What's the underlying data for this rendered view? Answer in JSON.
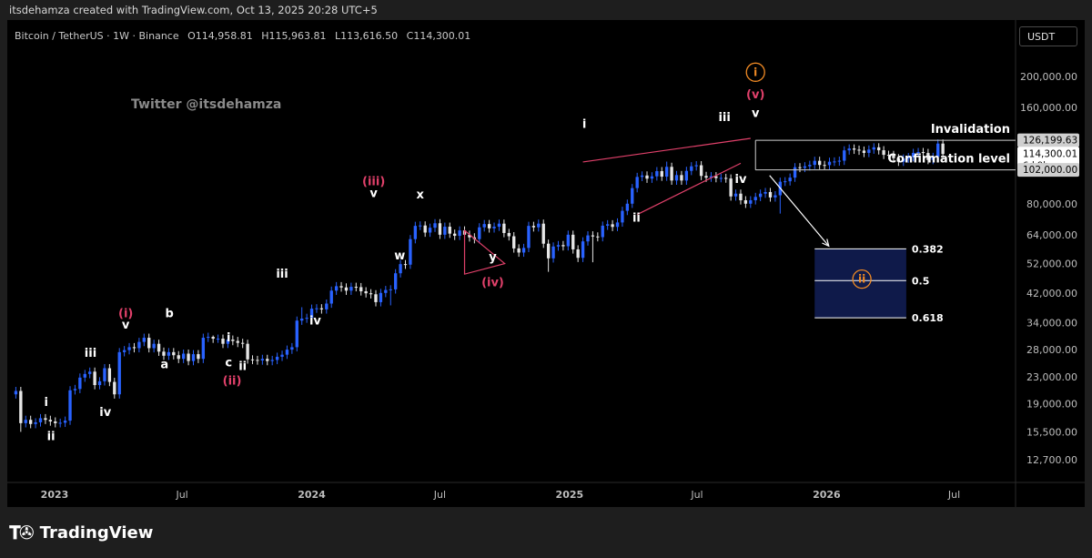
{
  "attribution": "itsdehamza created with TradingView.com, Oct 13, 2025 20:28 UTC+5",
  "symbol_line": {
    "name": "Bitcoin / TetherUS · 1W · Binance",
    "open": "O114,958.81",
    "high": "H115,963.81",
    "low": "L113,616.50",
    "close": "C114,300.01"
  },
  "watermark": "Twitter @itsdehamza",
  "currency": "USDT",
  "logo_text": "TradingView",
  "chart_data": {
    "type": "candlestick",
    "y_scale": "log",
    "ylim": [
      11500,
      240000
    ],
    "xlim": [
      "2022-10-31",
      "2026-09-21"
    ],
    "y_ticks": [
      {
        "v": 200000,
        "label": "200,000.00"
      },
      {
        "v": 160000,
        "label": "160,000.00"
      },
      {
        "v": 80000,
        "label": "80,000.00"
      },
      {
        "v": 64000,
        "label": "64,000.00"
      },
      {
        "v": 52000,
        "label": "52,000.00"
      },
      {
        "v": 42000,
        "label": "42,000.00"
      },
      {
        "v": 34000,
        "label": "34,000.00"
      },
      {
        "v": 28000,
        "label": "28,000.00"
      },
      {
        "v": 23000,
        "label": "23,000.00"
      },
      {
        "v": 19000,
        "label": "19,000.00"
      },
      {
        "v": 15500,
        "label": "15,500.00"
      },
      {
        "v": 12700,
        "label": "12,700.00"
      }
    ],
    "x_ticks": [
      {
        "date": "2023-01-01",
        "label": "2023",
        "bold": true
      },
      {
        "date": "2023-07-01",
        "label": "Jul",
        "bold": false
      },
      {
        "date": "2024-01-01",
        "label": "2024",
        "bold": true
      },
      {
        "date": "2024-07-01",
        "label": "Jul",
        "bold": false
      },
      {
        "date": "2025-01-01",
        "label": "2025",
        "bold": true
      },
      {
        "date": "2025-07-01",
        "label": "Jul",
        "bold": false
      },
      {
        "date": "2026-01-01",
        "label": "2026",
        "bold": true
      },
      {
        "date": "2026-07-01",
        "label": "Jul",
        "bold": false
      }
    ],
    "price_badges": [
      {
        "v": 126199.63,
        "label": "126,199.63",
        "bg": "#cfcfcf",
        "fg": "#000000"
      },
      {
        "v": 114300.01,
        "label": "114,300.01",
        "sub": "6d 9h",
        "bg": "#ffffff",
        "fg": "#000000"
      },
      {
        "v": 102000,
        "label": "102,000.00",
        "bg": "#cfcfcf",
        "fg": "#000000"
      }
    ],
    "candle_start": "2022-11-07",
    "candle_interval_days": 7,
    "closes": [
      20800,
      16500,
      16900,
      16400,
      16600,
      17100,
      16900,
      16700,
      16500,
      16550,
      16800,
      20900,
      21100,
      22900,
      23500,
      23900,
      21700,
      22300,
      24500,
      22200,
      20300,
      27500,
      27900,
      28500,
      28300,
      29600,
      30500,
      28300,
      29200,
      27600,
      26800,
      27500,
      26900,
      26200,
      27200,
      25800,
      27100,
      26200,
      30500,
      30700,
      30300,
      30300,
      29200,
      30100,
      29800,
      29400,
      29200,
      26100,
      26000,
      25900,
      26200,
      25800,
      26000,
      26600,
      27000,
      28000,
      28500,
      34500,
      35000,
      35200,
      37600,
      37700,
      37400,
      39000,
      42800,
      44200,
      43800,
      42800,
      44000,
      43900,
      42600,
      42000,
      41700,
      39400,
      42100,
      43000,
      43200,
      48500,
      51800,
      51600,
      62000,
      68200,
      68400,
      65000,
      67300,
      69500,
      64000,
      67800,
      64500,
      63500,
      66000,
      64000,
      62800,
      62000,
      67500,
      69100,
      67000,
      67800,
      69300,
      64800,
      63300,
      58000,
      56300,
      58200,
      68200,
      67500,
      69300,
      60000,
      54000,
      58800,
      59400,
      58900,
      64000,
      57600,
      54200,
      61000,
      63700,
      63200,
      62900,
      68300,
      69000,
      67700,
      69900,
      76000,
      80000,
      89500,
      97000,
      98000,
      95800,
      97400,
      101100,
      97200,
      104300,
      94500,
      98300,
      94500,
      101300,
      104700,
      105500,
      97700,
      96500,
      97500,
      96200,
      96300,
      95900,
      84300,
      86000,
      82000,
      80000,
      82000,
      84000,
      86000,
      87000,
      83700,
      85000,
      93700,
      94000,
      96500,
      104000,
      103500,
      104700,
      105800,
      108900,
      105700,
      105600,
      108200,
      108400,
      109000,
      117400,
      119000,
      118000,
      117200,
      115300,
      118100,
      120000,
      117500,
      113700,
      113600,
      111000,
      108200,
      110700,
      111800,
      115300,
      116000,
      115200,
      109600,
      112000,
      123300,
      114300
    ],
    "deviations": {
      "1": 15500,
      "40": 31000,
      "58": 38000,
      "76": 38500,
      "108": 49000,
      "117": 52500,
      "132": 108300,
      "155": 74500,
      "190": 126199.63,
      "191": 115963.81
    },
    "wave_labels": [
      {
        "text": "i",
        "date": "2022-12-20",
        "v": 18700,
        "color": "#ffffff"
      },
      {
        "text": "ii",
        "date": "2022-12-27",
        "v": 14600,
        "color": "#ffffff"
      },
      {
        "text": "iii",
        "date": "2023-02-21",
        "v": 26600,
        "color": "#ffffff"
      },
      {
        "text": "iv",
        "date": "2023-03-14",
        "v": 17400,
        "color": "#ffffff"
      },
      {
        "text": "(i)",
        "date": "2023-04-12",
        "v": 35400,
        "color": "#e0406a"
      },
      {
        "text": "v",
        "date": "2023-04-12",
        "v": 32600,
        "color": "#ffffff"
      },
      {
        "text": "a",
        "date": "2023-06-06",
        "v": 24500,
        "color": "#ffffff"
      },
      {
        "text": "b",
        "date": "2023-06-13",
        "v": 35400,
        "color": "#ffffff"
      },
      {
        "text": "i",
        "date": "2023-09-05",
        "v": 29700,
        "color": "#ffffff"
      },
      {
        "text": "c",
        "date": "2023-09-05",
        "v": 24800,
        "color": "#ffffff"
      },
      {
        "text": "(ii)",
        "date": "2023-09-10",
        "v": 21800,
        "color": "#e0406a"
      },
      {
        "text": "ii",
        "date": "2023-09-25",
        "v": 24200,
        "color": "#ffffff"
      },
      {
        "text": "iii",
        "date": "2023-11-20",
        "v": 47000,
        "color": "#ffffff"
      },
      {
        "text": "iv",
        "date": "2024-01-06",
        "v": 33600,
        "color": "#ffffff"
      },
      {
        "text": "(iii)",
        "date": "2024-03-29",
        "v": 91500,
        "color": "#e0406a"
      },
      {
        "text": "v",
        "date": "2024-03-29",
        "v": 84000,
        "color": "#ffffff"
      },
      {
        "text": "w",
        "date": "2024-05-05",
        "v": 53600,
        "color": "#ffffff"
      },
      {
        "text": "x",
        "date": "2024-06-03",
        "v": 83000,
        "color": "#ffffff"
      },
      {
        "text": "y",
        "date": "2024-09-14",
        "v": 53000,
        "color": "#ffffff"
      },
      {
        "text": "(iv)",
        "date": "2024-09-14",
        "v": 44100,
        "color": "#e0406a"
      },
      {
        "text": "i",
        "date": "2025-01-22",
        "v": 137800,
        "color": "#ffffff"
      },
      {
        "text": "ii",
        "date": "2025-04-06",
        "v": 70200,
        "color": "#ffffff"
      },
      {
        "text": "iii",
        "date": "2025-08-09",
        "v": 145000,
        "color": "#ffffff"
      },
      {
        "text": "iv",
        "date": "2025-09-01",
        "v": 93000,
        "color": "#ffffff"
      },
      {
        "text": "v",
        "date": "2025-09-22",
        "v": 149500,
        "color": "#ffffff"
      },
      {
        "text": "(v)",
        "date": "2025-09-22",
        "v": 170500,
        "color": "#e0406a"
      }
    ],
    "circled_labels": [
      {
        "text": "i",
        "date": "2025-09-22",
        "v": 206000,
        "color": "#f08a24"
      },
      {
        "text": "ii",
        "date": "2026-02-20",
        "v": 46500,
        "color": "#f08a24"
      }
    ],
    "triangle": {
      "points": [
        [
          "2024-08-05",
          66000
        ],
        [
          "2024-10-01",
          52000
        ],
        [
          "2024-08-05",
          48200
        ]
      ],
      "color": "#e0406a"
    },
    "wedge": {
      "upper": [
        [
          "2025-01-20",
          108000
        ],
        [
          "2025-09-15",
          128000
        ]
      ],
      "lower": [
        [
          "2025-04-07",
          74000
        ],
        [
          "2025-09-01",
          107000
        ]
      ],
      "color": "#e0406a"
    },
    "levels": [
      {
        "text": "Invalidation",
        "v": 126199.63,
        "from": "2025-09-22",
        "to": "2026-09-21"
      },
      {
        "text": "Confirmation level",
        "v": 102000,
        "from": "2025-09-22",
        "to": "2026-09-21"
      }
    ],
    "arrow": {
      "from": [
        "2025-10-12",
        98000
      ],
      "to": [
        "2026-01-04",
        59000
      ],
      "color": "#ffffff"
    },
    "fib_box": {
      "from": "2025-12-15",
      "to": "2026-04-24",
      "top": 57800,
      "bottom": 35200,
      "fill": "#0f1a4a"
    },
    "fib_levels": [
      {
        "label": "0.382",
        "v": 57800
      },
      {
        "label": "0.5",
        "v": 46000
      },
      {
        "label": "0.618",
        "v": 35200
      }
    ],
    "colors": {
      "up": "#2962ff",
      "down": "#e6e6e6",
      "grid": "#1a1a1a"
    }
  }
}
